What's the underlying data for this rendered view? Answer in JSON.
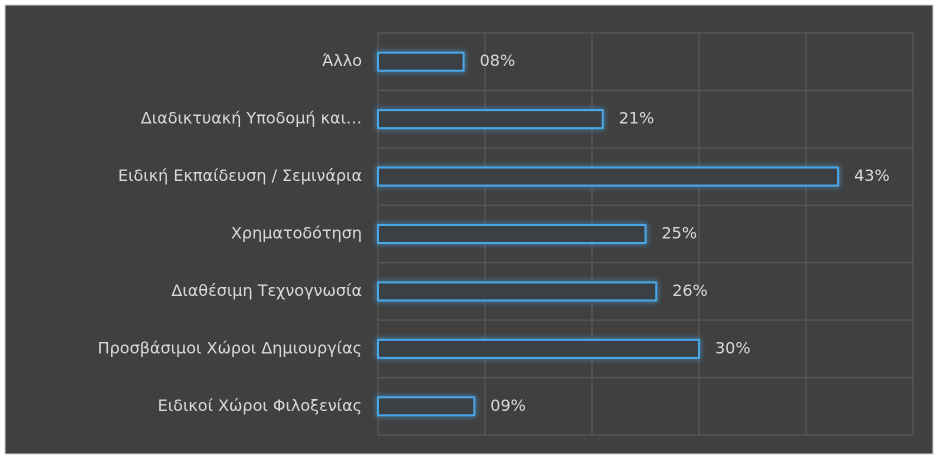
{
  "chart_data": {
    "type": "bar",
    "orientation": "horizontal",
    "categories": [
      "Άλλο",
      "Διαδικτυακή Υποδομή και…",
      "Ειδική Εκπαίδευση / Σεμινάρια",
      "Χρηματοδότηση",
      "Διαθέσιμη Τεχνογνωσία",
      "Προσβάσιμοι Χώροι Δημιουργίας",
      "Ειδικοί Χώροι Φιλοξενίας"
    ],
    "values": [
      8,
      21,
      43,
      25,
      26,
      30,
      9
    ],
    "value_labels": [
      "08%",
      "21%",
      "43%",
      "25%",
      "26%",
      "30%",
      "09%"
    ],
    "color": "#4aa8e8",
    "xlim": [
      0,
      50
    ],
    "xticks": [
      0,
      10,
      20,
      30,
      40,
      50
    ],
    "grid": true
  }
}
